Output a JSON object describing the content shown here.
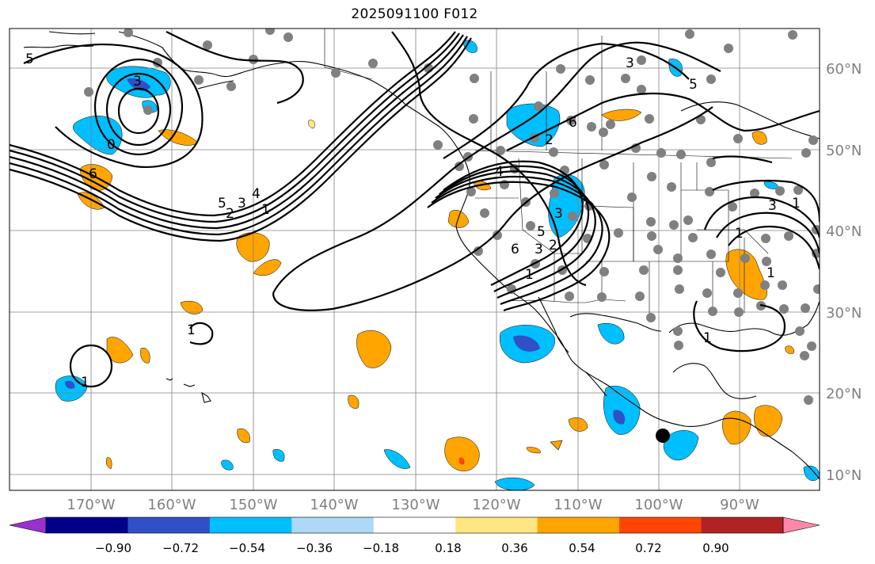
{
  "title": "2025091100 F012",
  "lon_labels": [
    "170°W",
    "160°W",
    "150°W",
    "140°W",
    "130°W",
    "120°W",
    "110°W",
    "100°W",
    "90°W"
  ],
  "lat_labels": [
    "60°N",
    "50°N",
    "40°N",
    "30°N",
    "20°N",
    "10°N"
  ],
  "colorbar": {
    "colors": [
      "#9b30d0",
      "#00008b",
      "#3050c8",
      "#00bfff",
      "#add8f7",
      "#ffffff",
      "#ffe680",
      "#ffa500",
      "#ff4500",
      "#b22222",
      "#ff88aa"
    ],
    "tick_labels": [
      "−0.90",
      "−0.72",
      "−0.54",
      "−0.36",
      "−0.18",
      "0.18",
      "0.36",
      "0.54",
      "0.72",
      "0.90"
    ]
  },
  "contour_labels": [
    "5",
    "3",
    "0",
    "6",
    "4",
    "3",
    "2",
    "1",
    "5",
    "6",
    "4",
    "3",
    "2",
    "1",
    "6",
    "5",
    "3",
    "2",
    "1",
    "1",
    "1",
    "1",
    "3",
    "1",
    "1",
    "5",
    "3"
  ],
  "station_marker": "black-dot",
  "colors": {
    "coast": "#000000",
    "grid": "#808080",
    "station": "#808080"
  }
}
